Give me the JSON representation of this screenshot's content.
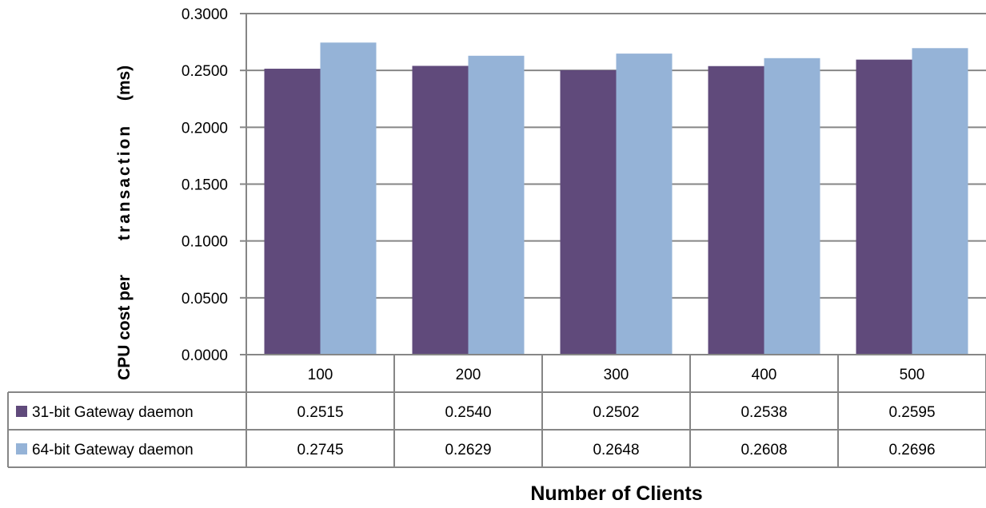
{
  "chart_data": {
    "type": "bar",
    "categories": [
      "100",
      "200",
      "300",
      "400",
      "500"
    ],
    "series": [
      {
        "name": "31-bit Gateway daemon",
        "values": [
          0.2515,
          0.254,
          0.2502,
          0.2538,
          0.2595
        ],
        "color": "#604A7B"
      },
      {
        "name": "64-bit Gateway daemon",
        "values": [
          0.2745,
          0.2629,
          0.2648,
          0.2608,
          0.2696
        ],
        "color": "#95B3D7"
      }
    ],
    "table_values": [
      [
        "0.2515",
        "0.2540",
        "0.2502",
        "0.2538",
        "0.2595"
      ],
      [
        "0.2745",
        "0.2629",
        "0.2648",
        "0.2608",
        "0.2696"
      ]
    ],
    "ylim": [
      0,
      0.3
    ],
    "yticks": [
      "0.0000",
      "0.0500",
      "0.1000",
      "0.1500",
      "0.2000",
      "0.2500",
      "0.3000"
    ],
    "ylabel_parts": [
      "CPU cost per",
      "transaction",
      "(ms)"
    ],
    "xlabel": "Number of Clients",
    "grid": true,
    "legend": "data-table"
  }
}
